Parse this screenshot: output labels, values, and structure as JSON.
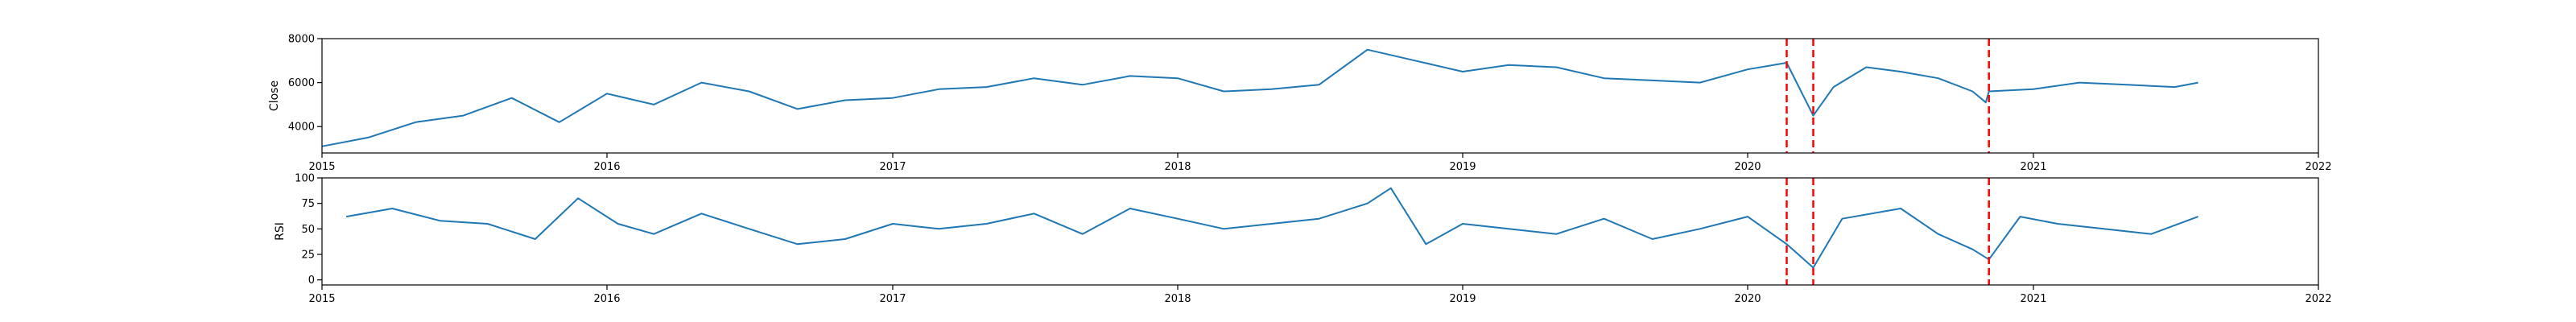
{
  "colors": {
    "series": "#1f77b4",
    "event_line": "#ff0000",
    "frame": "#000000",
    "background": "#ffffff"
  },
  "chart_data": [
    {
      "type": "line",
      "ylabel": "Close",
      "xlim": [
        "2015-01-01",
        "2022-01-01"
      ],
      "xticks": [
        "2015",
        "2016",
        "2017",
        "2018",
        "2019",
        "2020",
        "2021",
        "2022"
      ],
      "ylim": [
        2800,
        8000
      ],
      "yticks": [
        4000,
        6000,
        8000
      ],
      "grid": false,
      "series": [
        {
          "x": [
            "2015-01-01",
            "2015-03-01",
            "2015-05-01",
            "2015-07-01",
            "2015-09-01",
            "2015-11-01",
            "2016-01-01",
            "2016-03-01",
            "2016-05-01",
            "2016-07-01",
            "2016-09-01",
            "2016-11-01",
            "2017-01-01",
            "2017-03-01",
            "2017-05-01",
            "2017-07-01",
            "2017-09-01",
            "2017-11-01",
            "2018-01-01",
            "2018-03-01",
            "2018-05-01",
            "2018-07-01",
            "2018-09-01",
            "2018-11-01",
            "2019-01-01",
            "2019-03-01",
            "2019-05-01",
            "2019-07-01",
            "2019-09-01",
            "2019-11-01",
            "2020-01-01",
            "2020-02-20",
            "2020-03-25",
            "2020-04-20",
            "2020-06-01",
            "2020-07-15",
            "2020-09-01",
            "2020-10-15",
            "2020-11-01",
            "2020-11-05",
            "2021-01-01",
            "2021-03-01",
            "2021-05-01",
            "2021-07-01",
            "2021-07-31"
          ],
          "y": [
            3100,
            3500,
            4200,
            4500,
            5300,
            4200,
            5500,
            5000,
            6000,
            5600,
            4800,
            5200,
            5300,
            5700,
            5800,
            6200,
            5900,
            6300,
            6200,
            5600,
            5700,
            5900,
            7500,
            7000,
            6500,
            6800,
            6700,
            6200,
            6100,
            6000,
            6600,
            6900,
            4500,
            5800,
            6700,
            6500,
            6200,
            5600,
            5100,
            5600,
            5700,
            6000,
            5900,
            5800,
            6000
          ]
        }
      ],
      "event_lines": [
        "2020-02-20",
        "2020-03-25",
        "2020-11-05"
      ]
    },
    {
      "type": "line",
      "ylabel": "RSI",
      "xlim": [
        "2015-01-01",
        "2022-01-01"
      ],
      "xticks": [
        "2015",
        "2016",
        "2017",
        "2018",
        "2019",
        "2020",
        "2021",
        "2022"
      ],
      "ylim": [
        -5,
        100
      ],
      "yticks": [
        0,
        25,
        50,
        75,
        100
      ],
      "grid": false,
      "series": [
        {
          "x": [
            "2015-02-01",
            "2015-04-01",
            "2015-06-01",
            "2015-08-01",
            "2015-10-01",
            "2015-11-25",
            "2016-01-15",
            "2016-03-01",
            "2016-05-01",
            "2016-07-01",
            "2016-09-01",
            "2016-11-01",
            "2017-01-01",
            "2017-03-01",
            "2017-05-01",
            "2017-07-01",
            "2017-09-01",
            "2017-11-01",
            "2018-01-01",
            "2018-03-01",
            "2018-05-01",
            "2018-07-01",
            "2018-09-01",
            "2018-10-01",
            "2018-11-15",
            "2019-01-01",
            "2019-03-01",
            "2019-05-01",
            "2019-07-01",
            "2019-09-01",
            "2019-11-01",
            "2020-01-01",
            "2020-02-20",
            "2020-03-25",
            "2020-05-01",
            "2020-07-15",
            "2020-09-01",
            "2020-10-15",
            "2020-11-05",
            "2020-12-15",
            "2021-02-01",
            "2021-04-01",
            "2021-06-01",
            "2021-07-31"
          ],
          "y": [
            62,
            70,
            58,
            55,
            40,
            80,
            55,
            45,
            65,
            50,
            35,
            40,
            55,
            50,
            55,
            65,
            45,
            70,
            60,
            50,
            55,
            60,
            75,
            90,
            35,
            55,
            50,
            45,
            60,
            40,
            50,
            62,
            35,
            12,
            60,
            70,
            45,
            30,
            20,
            62,
            55,
            50,
            45,
            62
          ]
        }
      ],
      "event_lines": [
        "2020-02-20",
        "2020-03-25",
        "2020-11-05"
      ]
    }
  ]
}
